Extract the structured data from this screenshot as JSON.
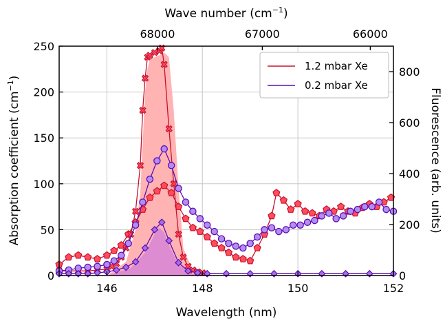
{
  "chart_data": {
    "type": "line",
    "x_axis": {
      "label": "Wavelength (nm)",
      "range": [
        145,
        152
      ],
      "ticks": [
        146,
        148,
        150,
        152
      ]
    },
    "top_axis": {
      "label_main": "Wave number (cm",
      "label_sup": "−1",
      "label_end": ")",
      "ticks": [
        68000,
        67000,
        66000
      ]
    },
    "y_left": {
      "label_main": "Absorption coefficient (cm",
      "label_sup": "−1",
      "label_end": ")",
      "range": [
        0,
        250
      ],
      "ticks": [
        0,
        50,
        100,
        150,
        200,
        250
      ]
    },
    "y_right": {
      "label": "Fluorescence (arb. units)",
      "range": [
        0,
        900
      ],
      "ticks": [
        0,
        200,
        400,
        600,
        800
      ]
    },
    "grid": true,
    "legend_position": "top-right",
    "legend": [
      {
        "label": "1.2 mbar Xe",
        "color": "#c8102e"
      },
      {
        "label": "0.2 mbar Xe",
        "color": "#5a0fb4"
      }
    ],
    "fill_high": {
      "color": "#ffb3b3",
      "x": [
        145.0,
        146.0,
        146.4,
        146.6,
        146.7,
        146.75,
        146.8,
        146.85,
        146.9,
        147.0,
        147.1,
        147.2,
        147.3,
        147.4,
        147.5,
        147.6,
        147.8,
        148.0,
        152.0
      ],
      "y": [
        0,
        0,
        15,
        50,
        90,
        145,
        200,
        225,
        235,
        238,
        240,
        243,
        238,
        180,
        95,
        30,
        5,
        0,
        0
      ]
    },
    "fill_low": {
      "color": "#dd8cd1",
      "x": [
        145.0,
        146.0,
        146.5,
        146.8,
        147.0,
        147.1,
        147.2,
        147.3,
        147.5,
        147.8,
        148.0,
        152.0
      ],
      "y": [
        0,
        0,
        8,
        25,
        45,
        52,
        47,
        33,
        12,
        2,
        0,
        0
      ]
    },
    "series": [
      {
        "name": "1.2 mbar Xe",
        "axis": "left",
        "marker": "pentagon",
        "color": "#c8102e",
        "face": "#ff4d5c",
        "x": [
          145.0,
          145.2,
          145.4,
          145.6,
          145.8,
          146.0,
          146.15,
          146.3,
          146.45,
          146.6,
          146.75,
          146.9,
          147.05,
          147.2,
          147.35,
          147.5,
          147.65,
          147.8,
          147.95,
          148.1,
          148.25,
          148.4,
          148.55,
          148.7,
          148.85,
          149.0,
          149.15,
          149.3,
          149.45,
          149.55,
          149.7,
          149.85,
          150.0,
          150.15,
          150.3,
          150.45,
          150.6,
          150.75,
          150.9,
          151.05,
          151.2,
          151.35,
          151.5,
          151.65,
          151.8,
          151.95
        ],
        "y": [
          12,
          20,
          22,
          20,
          18,
          22,
          27,
          33,
          45,
          58,
          72,
          85,
          92,
          98,
          90,
          75,
          62,
          52,
          48,
          42,
          35,
          30,
          25,
          20,
          18,
          16,
          30,
          45,
          65,
          90,
          82,
          72,
          78,
          70,
          68,
          65,
          72,
          70,
          75,
          70,
          68,
          74,
          78,
          75,
          80,
          85
        ]
      },
      {
        "name": "1.2 mbar Xe marker",
        "axis": "left",
        "marker": "x",
        "color": "#c8102e",
        "face": "#ff4d5c",
        "x": [
          145.0,
          145.2,
          145.4,
          145.6,
          145.8,
          146.0,
          146.1,
          146.2,
          146.3,
          146.4,
          146.5,
          146.6,
          146.7,
          146.75,
          146.8,
          146.85,
          146.9,
          147.0,
          147.1,
          147.15,
          147.2,
          147.3,
          147.4,
          147.5,
          147.6,
          147.7,
          147.8,
          147.9,
          148.0
        ],
        "y": [
          5,
          5,
          5,
          5,
          6,
          7,
          10,
          13,
          20,
          30,
          45,
          70,
          120,
          180,
          215,
          238,
          240,
          243,
          245,
          248,
          230,
          160,
          100,
          45,
          20,
          10,
          6,
          4,
          3
        ]
      },
      {
        "name": "0.2 mbar Xe",
        "axis": "left",
        "marker": "circle",
        "color": "#5a0fb4",
        "face": "#b58cf0",
        "x": [
          145.0,
          145.2,
          145.4,
          145.6,
          145.8,
          146.0,
          146.15,
          146.3,
          146.45,
          146.6,
          146.75,
          146.9,
          147.05,
          147.2,
          147.35,
          147.5,
          147.65,
          147.8,
          147.95,
          148.1,
          148.25,
          148.4,
          148.55,
          148.7,
          148.85,
          149.0,
          149.15,
          149.3,
          149.45,
          149.6,
          149.75,
          149.9,
          150.05,
          150.2,
          150.35,
          150.5,
          150.65,
          150.8,
          150.95,
          151.1,
          151.25,
          151.4,
          151.55,
          151.7,
          151.85,
          152.0
        ],
        "y": [
          5,
          6,
          8,
          9,
          10,
          12,
          16,
          22,
          35,
          55,
          80,
          105,
          125,
          138,
          120,
          95,
          80,
          70,
          62,
          55,
          48,
          40,
          35,
          32,
          30,
          35,
          42,
          50,
          52,
          48,
          50,
          55,
          55,
          58,
          60,
          65,
          68,
          62,
          65,
          70,
          72,
          75,
          75,
          80,
          72,
          70
        ]
      },
      {
        "name": "0.2 mbar Xe marker",
        "axis": "left",
        "marker": "diamond",
        "color": "#5a0fb4",
        "face": "#a66ee6",
        "x": [
          145.0,
          145.2,
          145.4,
          145.6,
          145.8,
          146.0,
          146.2,
          146.4,
          146.6,
          146.8,
          147.0,
          147.15,
          147.3,
          147.5,
          147.7,
          147.9,
          148.1,
          148.5,
          149.0,
          149.5,
          150.0,
          150.5,
          151.0,
          151.5,
          152.0
        ],
        "y": [
          2,
          2,
          2,
          2,
          3,
          4,
          6,
          9,
          15,
          30,
          50,
          58,
          38,
          14,
          5,
          3,
          2,
          2,
          2,
          2,
          2,
          2,
          2,
          2,
          2
        ]
      }
    ]
  }
}
